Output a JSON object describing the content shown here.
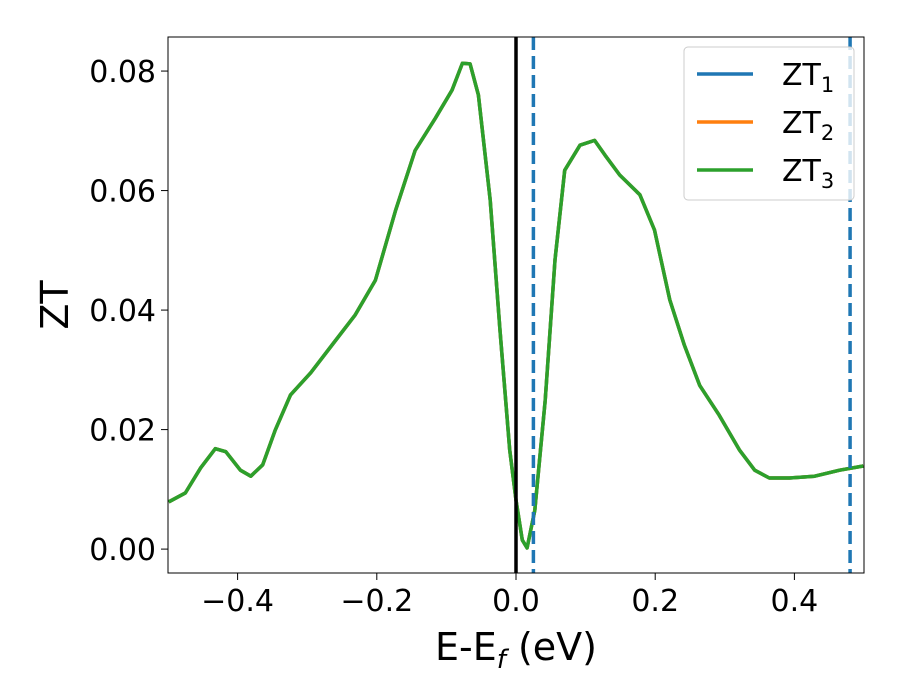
{
  "chart_data": {
    "type": "line",
    "title": "",
    "xlabel": "E-E",
    "xlabel_sub": "f",
    "xlabel_unit": " (eV)",
    "ylabel": "ZT",
    "xlim": [
      -0.5,
      0.5
    ],
    "ylim": [
      -0.004,
      0.0857
    ],
    "xticks": [
      -0.4,
      -0.2,
      0.0,
      0.2,
      0.4
    ],
    "xtick_labels": [
      "−0.4",
      "−0.2",
      "0.0",
      "0.2",
      "0.4"
    ],
    "yticks": [
      0.0,
      0.02,
      0.04,
      0.06,
      0.08
    ],
    "ytick_labels": [
      "0.00",
      "0.02",
      "0.04",
      "0.06",
      "0.08"
    ],
    "grid": false,
    "legend_position": "top-right",
    "vlines": [
      {
        "x": 0.0,
        "style": "solid",
        "color": "#000000"
      },
      {
        "x": 0.025,
        "style": "dashed",
        "color": "#1f77b4"
      },
      {
        "x": 0.48,
        "style": "dashed",
        "color": "#1f77b4"
      }
    ],
    "x": [
      -0.499,
      -0.475,
      -0.453,
      -0.432,
      -0.417,
      -0.396,
      -0.381,
      -0.364,
      -0.346,
      -0.324,
      -0.295,
      -0.266,
      -0.231,
      -0.202,
      -0.173,
      -0.145,
      -0.116,
      -0.092,
      -0.077,
      -0.066,
      -0.054,
      -0.037,
      -0.023,
      -0.009,
      0.0,
      0.009,
      0.016,
      0.027,
      0.042,
      0.056,
      0.07,
      0.092,
      0.113,
      0.128,
      0.149,
      0.178,
      0.199,
      0.221,
      0.242,
      0.264,
      0.292,
      0.321,
      0.343,
      0.364,
      0.393,
      0.429,
      0.465,
      0.499
    ],
    "series": [
      {
        "name": "ZT",
        "sub": "1",
        "color": "#1f77b4",
        "values": [
          0.0079,
          0.0094,
          0.0136,
          0.0168,
          0.0163,
          0.0132,
          0.0122,
          0.0141,
          0.0199,
          0.0258,
          0.0295,
          0.0339,
          0.0392,
          0.045,
          0.0567,
          0.0667,
          0.0721,
          0.0768,
          0.0813,
          0.0812,
          0.076,
          0.0584,
          0.0366,
          0.0166,
          0.0082,
          0.0015,
          0.0002,
          0.0065,
          0.0249,
          0.0484,
          0.0634,
          0.0676,
          0.0684,
          0.0659,
          0.0626,
          0.0593,
          0.0534,
          0.0417,
          0.0341,
          0.0274,
          0.0224,
          0.0166,
          0.0132,
          0.0119,
          0.0119,
          0.0122,
          0.0132,
          0.0139
        ]
      },
      {
        "name": "ZT",
        "sub": "2",
        "color": "#ff7f0e",
        "values": [
          0.0079,
          0.0094,
          0.0136,
          0.0168,
          0.0163,
          0.0132,
          0.0122,
          0.0141,
          0.0199,
          0.0258,
          0.0295,
          0.0339,
          0.0392,
          0.045,
          0.0567,
          0.0667,
          0.0721,
          0.0768,
          0.0813,
          0.0812,
          0.076,
          0.0584,
          0.0366,
          0.0166,
          0.0082,
          0.0015,
          0.0002,
          0.0065,
          0.0249,
          0.0484,
          0.0634,
          0.0676,
          0.0684,
          0.0659,
          0.0626,
          0.0593,
          0.0534,
          0.0417,
          0.0341,
          0.0274,
          0.0224,
          0.0166,
          0.0132,
          0.0119,
          0.0119,
          0.0122,
          0.0132,
          0.0139
        ]
      },
      {
        "name": "ZT",
        "sub": "3",
        "color": "#2ca02c",
        "values": [
          0.0079,
          0.0094,
          0.0136,
          0.0168,
          0.0163,
          0.0132,
          0.0122,
          0.0141,
          0.0199,
          0.0258,
          0.0295,
          0.0339,
          0.0392,
          0.045,
          0.0567,
          0.0667,
          0.0721,
          0.0768,
          0.0813,
          0.0812,
          0.076,
          0.0584,
          0.0366,
          0.0166,
          0.0082,
          0.0015,
          0.0002,
          0.0065,
          0.0249,
          0.0484,
          0.0634,
          0.0676,
          0.0684,
          0.0659,
          0.0626,
          0.0593,
          0.0534,
          0.0417,
          0.0341,
          0.0274,
          0.0224,
          0.0166,
          0.0132,
          0.0119,
          0.0119,
          0.0122,
          0.0132,
          0.0139
        ]
      }
    ]
  }
}
